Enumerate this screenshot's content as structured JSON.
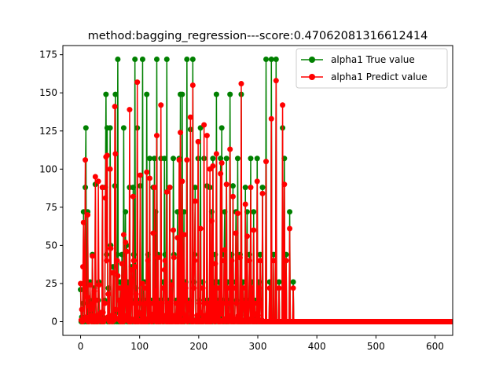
{
  "chart_data": {
    "type": "line",
    "title": "method:bagging_regression---score:0.47062081316612414",
    "xlabel": "",
    "ylabel": "",
    "xlim": [
      -30,
      630
    ],
    "ylim": [
      -9,
      181
    ],
    "xticks": [
      0,
      100,
      200,
      300,
      400,
      500,
      600
    ],
    "yticks": [
      0,
      25,
      50,
      75,
      100,
      125,
      150,
      175
    ],
    "grid": false,
    "legend_position": "top-right",
    "series": [
      {
        "name": "alpha1 True value",
        "color": "#008000",
        "marker": "circle",
        "x_start": 0,
        "x_step": 1,
        "values": [
          21,
          0,
          3,
          0,
          12,
          72,
          0,
          26,
          88,
          127,
          0,
          2,
          72,
          0,
          0,
          14,
          26,
          6,
          2,
          0,
          44,
          14,
          0,
          22,
          0,
          90,
          14,
          0,
          3,
          0,
          14,
          26,
          3,
          0,
          1,
          5,
          0,
          88,
          3,
          0,
          0,
          14,
          88,
          149,
          44,
          127,
          0,
          22,
          1,
          0,
          127,
          50,
          2,
          0,
          0,
          36,
          2,
          0,
          89,
          149,
          6,
          0,
          44,
          172,
          0,
          14,
          0,
          26,
          0,
          2,
          44,
          0,
          0,
          127,
          0,
          14,
          72,
          2,
          50,
          0,
          26,
          1,
          0,
          88,
          0,
          0,
          36,
          14,
          0,
          88,
          44,
          0,
          172,
          0,
          22,
          0,
          127,
          0,
          0,
          3,
          14,
          89,
          0,
          0,
          2,
          172,
          0,
          0,
          26,
          1,
          0,
          14,
          149,
          0,
          44,
          0,
          0,
          107,
          3,
          14,
          0,
          0,
          0,
          88,
          0,
          107,
          2,
          72,
          0,
          172,
          0,
          44,
          0,
          14,
          0,
          0,
          107,
          1,
          14,
          0,
          26,
          0,
          107,
          44,
          2,
          0,
          172,
          0,
          0,
          14,
          0,
          88,
          0,
          0,
          26,
          0,
          0,
          107,
          44,
          2,
          0,
          0,
          14,
          0,
          72,
          0,
          0,
          107,
          2,
          149,
          0,
          0,
          149,
          3,
          0,
          72,
          0,
          26,
          26,
          2,
          172,
          0,
          0,
          14,
          14,
          0,
          126,
          1,
          0,
          0,
          172,
          0,
          26,
          44,
          88,
          0,
          0,
          2,
          0,
          107,
          0,
          14,
          0,
          127,
          3,
          0,
          0,
          26,
          0,
          107,
          14,
          2,
          0,
          0,
          89,
          0,
          0,
          14,
          0,
          88,
          2,
          0,
          72,
          0,
          107,
          1,
          26,
          0,
          44,
          0,
          149,
          2,
          14,
          0,
          26,
          0,
          0,
          107,
          3,
          127,
          0,
          14,
          0,
          44,
          72,
          0,
          0,
          107,
          0,
          26,
          0,
          0,
          14,
          149,
          2,
          0,
          44,
          0,
          89,
          0,
          1,
          0,
          26,
          72,
          14,
          0,
          107,
          2,
          0,
          0,
          44,
          0,
          149,
          0,
          0,
          26,
          14,
          0,
          0,
          88,
          2,
          0,
          72,
          0,
          0,
          14,
          44,
          0,
          107,
          1,
          26,
          0,
          0,
          72,
          0,
          14,
          3,
          0,
          0,
          107,
          2,
          0,
          26,
          0,
          44,
          14,
          0,
          0,
          88,
          0,
          0,
          0,
          0,
          0,
          172,
          0,
          0,
          0,
          0,
          0,
          26,
          0,
          0,
          172,
          0,
          0,
          0,
          44,
          0,
          0,
          0,
          172,
          0,
          0,
          0,
          0,
          26,
          0,
          0,
          0,
          0,
          0,
          127,
          0,
          0,
          107,
          0,
          0,
          44,
          0,
          0,
          0,
          0,
          0,
          72,
          0,
          0,
          0,
          0,
          0,
          26,
          0,
          0,
          0,
          0,
          0,
          0,
          0,
          0,
          0,
          0,
          0,
          0,
          0,
          0,
          0,
          0,
          0,
          0,
          0,
          0,
          0,
          0,
          0,
          0,
          0,
          0,
          0,
          0,
          0,
          0,
          0,
          0,
          0,
          0,
          0,
          0,
          0,
          0,
          0,
          0,
          0,
          0,
          0,
          0,
          0,
          0,
          0,
          0,
          0,
          0,
          0,
          0,
          0,
          0,
          0,
          0,
          0,
          0,
          0,
          0,
          0,
          0,
          0,
          0,
          0,
          0,
          0,
          0,
          0,
          0,
          0,
          0,
          0,
          0,
          0,
          0,
          0,
          0,
          0,
          0,
          0,
          0,
          0,
          0,
          0,
          0,
          0,
          0,
          0,
          0,
          0,
          0,
          0,
          0,
          0,
          0,
          0,
          0,
          0,
          0,
          0,
          0,
          0,
          0,
          0,
          0,
          0,
          0,
          0,
          0,
          0,
          0,
          0,
          0,
          0,
          0,
          0,
          0,
          0,
          0,
          0,
          0,
          0,
          0,
          0,
          0,
          0,
          0,
          0,
          0,
          0,
          0,
          0,
          0,
          0,
          0,
          0,
          0,
          0,
          0,
          0,
          0,
          0,
          0,
          0,
          0,
          0,
          0,
          0,
          0,
          0,
          0,
          0,
          0,
          0,
          0,
          0,
          0,
          0,
          0,
          0,
          0,
          0,
          0,
          0,
          0,
          0,
          0,
          0,
          0,
          0,
          0,
          0,
          0,
          0,
          0,
          0,
          0,
          0,
          0,
          0,
          0,
          0,
          0,
          0,
          0,
          0,
          0,
          0,
          0,
          0,
          0,
          0,
          0,
          0,
          0,
          0,
          0,
          0,
          0,
          0,
          0,
          0,
          0,
          0,
          0,
          0,
          0,
          0,
          0,
          0,
          0,
          0,
          0,
          0,
          0,
          0,
          0,
          0,
          0,
          0,
          0,
          0,
          0,
          0,
          0,
          0,
          0,
          0,
          0,
          0,
          0,
          0,
          0,
          0,
          0,
          0,
          0,
          0,
          0,
          0,
          0,
          0,
          0,
          0,
          0,
          0,
          0,
          0,
          0,
          0,
          0,
          0,
          0,
          0,
          0,
          0,
          0,
          0,
          0,
          0,
          0,
          0,
          0,
          0,
          0,
          0,
          0,
          0,
          0,
          0,
          0,
          0,
          0,
          0
        ]
      },
      {
        "name": "alpha1 Predict value",
        "color": "#ff0000",
        "marker": "circle",
        "x_start": 0,
        "x_step": 1,
        "values": [
          25,
          1,
          8,
          0,
          36,
          65,
          2,
          22,
          106,
          3,
          1,
          16,
          70,
          0,
          2,
          10,
          24,
          8,
          4,
          0,
          43,
          12,
          2,
          20,
          0,
          95,
          14,
          1,
          4,
          0,
          92,
          24,
          5,
          1,
          2,
          6,
          0,
          88,
          6,
          0,
          1,
          12,
          81,
          108,
          40,
          109,
          3,
          18,
          2,
          0,
          100,
          48,
          4,
          1,
          0,
          32,
          4,
          1,
          141,
          110,
          8,
          2,
          40,
          30,
          2,
          14,
          1,
          22,
          0,
          4,
          38,
          1,
          0,
          57,
          2,
          12,
          52,
          4,
          46,
          1,
          22,
          2,
          0,
          139,
          2,
          0,
          34,
          12,
          1,
          82,
          40,
          0,
          36,
          2,
          18,
          0,
          157,
          1,
          0,
          6,
          12,
          96,
          0,
          1,
          4,
          25,
          0,
          1,
          22,
          2,
          0,
          12,
          98,
          0,
          40,
          2,
          1,
          94,
          5,
          12,
          0,
          0,
          2,
          58,
          1,
          88,
          4,
          20,
          0,
          122,
          0,
          42,
          2,
          12,
          0,
          1,
          142,
          2,
          12,
          0,
          22,
          1,
          34,
          40,
          4,
          0,
          85,
          1,
          0,
          12,
          0,
          88,
          2,
          0,
          24,
          1,
          0,
          60,
          42,
          4,
          0,
          2,
          12,
          0,
          55,
          1,
          0,
          106,
          4,
          124,
          0,
          1,
          92,
          6,
          0,
          57,
          1,
          24,
          22,
          4,
          106,
          0,
          2,
          12,
          12,
          1,
          134,
          2,
          0,
          1,
          155,
          0,
          22,
          40,
          79,
          1,
          0,
          4,
          0,
          118,
          1,
          12,
          0,
          61,
          6,
          0,
          1,
          22,
          0,
          129,
          12,
          4,
          1,
          0,
          122,
          0,
          1,
          12,
          0,
          100,
          4,
          0,
          66,
          1,
          102,
          2,
          22,
          0,
          38,
          1,
          110,
          4,
          12,
          0,
          22,
          1,
          0,
          97,
          5,
          104,
          0,
          12,
          1,
          40,
          47,
          0,
          2,
          90,
          1,
          22,
          0,
          1,
          12,
          113,
          4,
          0,
          40,
          0,
          82,
          1,
          2,
          0,
          22,
          58,
          12,
          0,
          71,
          4,
          1,
          0,
          42,
          0,
          156,
          1,
          0,
          22,
          12,
          0,
          1,
          77,
          4,
          0,
          56,
          0,
          1,
          12,
          40,
          0,
          88,
          2,
          22,
          0,
          1,
          60,
          0,
          12,
          5,
          0,
          1,
          92,
          4,
          0,
          22,
          0,
          40,
          12,
          0,
          1,
          84,
          0,
          0,
          0,
          0,
          0,
          105,
          0,
          0,
          0,
          0,
          0,
          22,
          0,
          0,
          133,
          0,
          0,
          0,
          40,
          0,
          0,
          0,
          158,
          0,
          0,
          0,
          0,
          22,
          0,
          0,
          0,
          0,
          0,
          142,
          0,
          0,
          90,
          0,
          0,
          40,
          0,
          0,
          0,
          0,
          0,
          61,
          0,
          0,
          0,
          0,
          0,
          22,
          0,
          0,
          0,
          0,
          0,
          0,
          0,
          0,
          0,
          0,
          0,
          0,
          0,
          0,
          0,
          0,
          0,
          0,
          0,
          0,
          0,
          0,
          0,
          0,
          0,
          0,
          0,
          0,
          0,
          0,
          0,
          0,
          0,
          0,
          0,
          0,
          0,
          0,
          0,
          0,
          0,
          0,
          0,
          0,
          0,
          0,
          0,
          0,
          0,
          0,
          0,
          0,
          0,
          0,
          0,
          0,
          0,
          0,
          0,
          0,
          0,
          0,
          0,
          0,
          0,
          0,
          0,
          0,
          0,
          0,
          0,
          0,
          0,
          0,
          0,
          0,
          0,
          0,
          0,
          0,
          0,
          0,
          0,
          0,
          0,
          0,
          0,
          0,
          0,
          0,
          0,
          0,
          0,
          0,
          0,
          0,
          0,
          0,
          0,
          0,
          0,
          0,
          0,
          0,
          0,
          0,
          0,
          0,
          0,
          0,
          0,
          0,
          0,
          0,
          0,
          0,
          0,
          0,
          0,
          0,
          0,
          0,
          0,
          0,
          0,
          0,
          0,
          0,
          0,
          0,
          0,
          0,
          0,
          0,
          0,
          0,
          0,
          0,
          0,
          0,
          0,
          0,
          0,
          0,
          0,
          0,
          0,
          0,
          0,
          0,
          0,
          0,
          0,
          0,
          0,
          0,
          0,
          0,
          0,
          0,
          0,
          0,
          0,
          0,
          0,
          0,
          0,
          0,
          0,
          0,
          0,
          0,
          0,
          0,
          0,
          0,
          0,
          0,
          0,
          0,
          0,
          0,
          0,
          0,
          0,
          0,
          0,
          0,
          0,
          0,
          0,
          0,
          0,
          0,
          0,
          0,
          0,
          0,
          0,
          0,
          0,
          0,
          0,
          0,
          0,
          0,
          0,
          0,
          0,
          0,
          0,
          0,
          0,
          0,
          0,
          0,
          0,
          0,
          0,
          0,
          0,
          0,
          0,
          0,
          0,
          0,
          0,
          0,
          0,
          0,
          0,
          0,
          0,
          0,
          0,
          0,
          0,
          0,
          0,
          0,
          0,
          0,
          0,
          0,
          0,
          0,
          0,
          0,
          0,
          0,
          0,
          0,
          0,
          0,
          0,
          0,
          0,
          0,
          0,
          0,
          0,
          0,
          0,
          0,
          0,
          0,
          0,
          0,
          0,
          0,
          0,
          0,
          0,
          0,
          0,
          0,
          0,
          0,
          0,
          0,
          0,
          0
        ]
      }
    ]
  }
}
